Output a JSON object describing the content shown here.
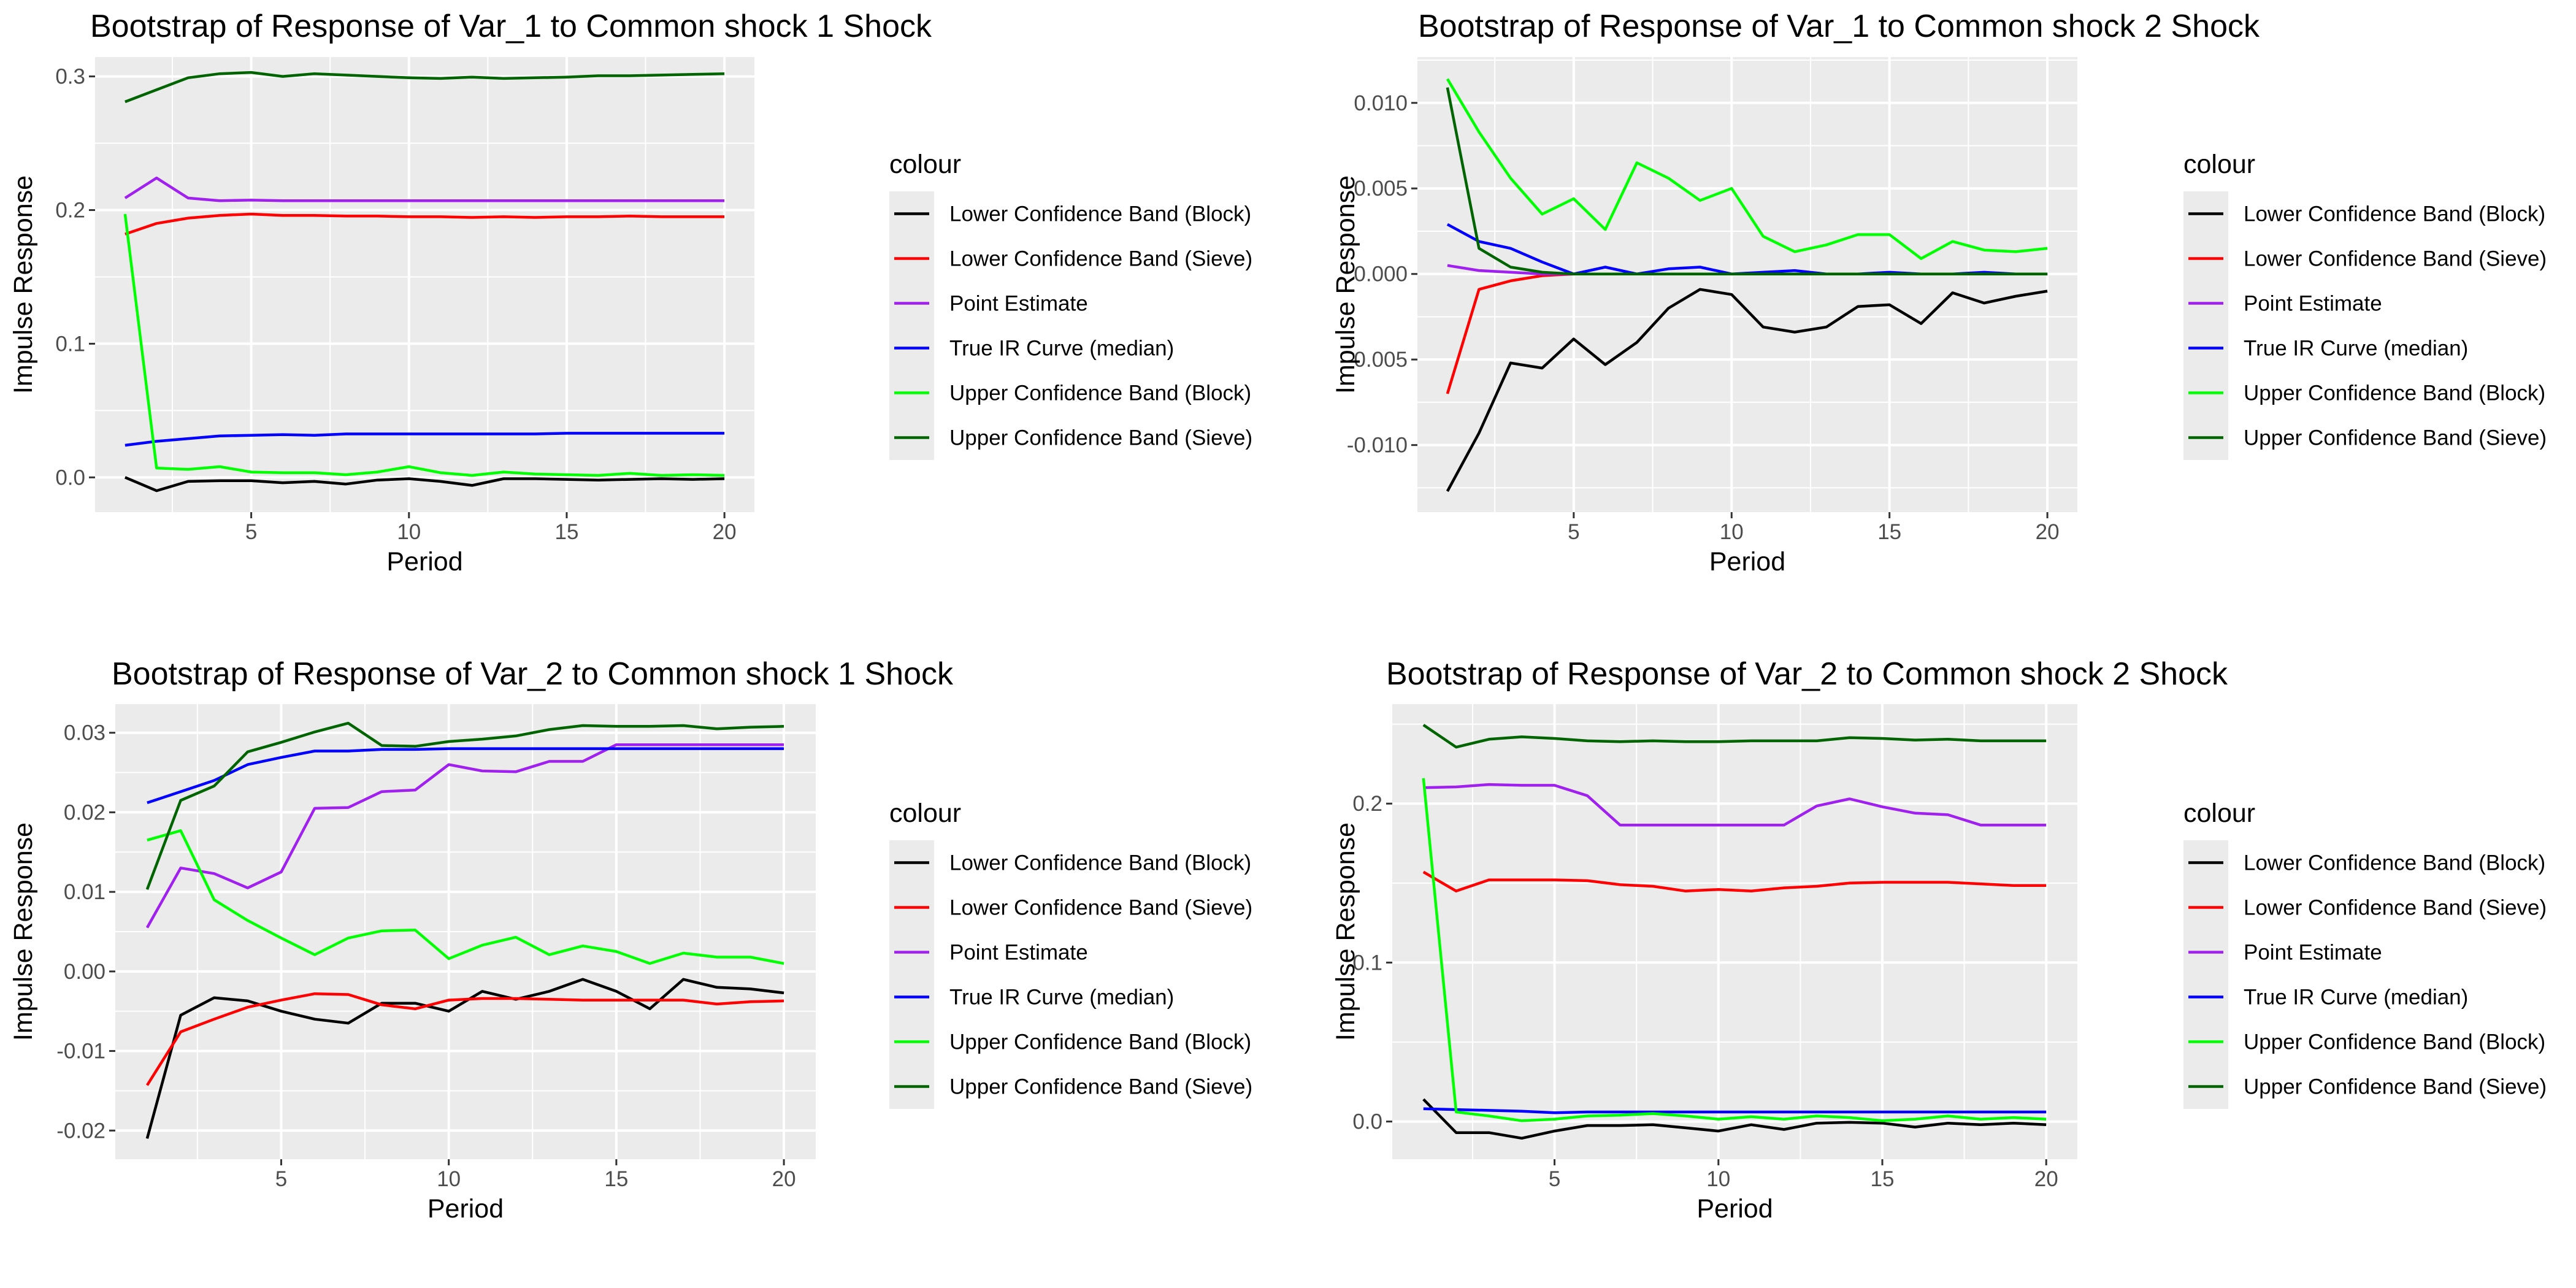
{
  "figure": {
    "colors": {
      "Lower Confidence Band (Block)": "#000000",
      "Lower Confidence Band (Sieve)": "#ff0000",
      "Point Estimate": "#a020f0",
      "True IR Curve (median)": "#0000ff",
      "Upper Confidence Band (Block)": "#00ff00",
      "Upper Confidence Band (Sieve)": "#006400"
    }
  },
  "chart_data": [
    {
      "type": "line",
      "title": "Bootstrap of Response of Var_1 to Common shock 1 Shock",
      "xlabel": "Period",
      "ylabel": "Impulse Response",
      "xlim": [
        0.05,
        20.95
      ],
      "ylim": [
        -0.026,
        0.3145
      ],
      "xticks": [
        5,
        10,
        15,
        20
      ],
      "xtick_labels": [
        "5",
        "10",
        "15",
        "20"
      ],
      "yticks": [
        0.0,
        0.1,
        0.2,
        0.3
      ],
      "ytick_labels": [
        "0.0",
        "0.1",
        "0.2",
        "0.3"
      ],
      "grid": true,
      "legend": {
        "title": "colour",
        "position": "right"
      },
      "x": [
        1,
        2,
        3,
        4,
        5,
        6,
        7,
        8,
        9,
        10,
        11,
        12,
        13,
        14,
        15,
        16,
        17,
        18,
        19,
        20
      ],
      "series": [
        {
          "name": "Lower Confidence Band (Block)",
          "values": [
            0.0,
            -0.01,
            -0.003,
            -0.0025,
            -0.0025,
            -0.004,
            -0.003,
            -0.005,
            -0.002,
            -0.001,
            -0.003,
            -0.006,
            -0.001,
            -0.001,
            -0.0015,
            -0.002,
            -0.0015,
            -0.001,
            -0.0015,
            -0.001
          ]
        },
        {
          "name": "Lower Confidence Band (Sieve)",
          "values": [
            0.182,
            0.19,
            0.194,
            0.196,
            0.197,
            0.196,
            0.196,
            0.1955,
            0.1955,
            0.195,
            0.195,
            0.1945,
            0.195,
            0.1945,
            0.195,
            0.195,
            0.1955,
            0.195,
            0.195,
            0.195
          ]
        },
        {
          "name": "Point Estimate",
          "values": [
            0.209,
            0.224,
            0.209,
            0.207,
            0.2075,
            0.207,
            0.207,
            0.207,
            0.207,
            0.207,
            0.207,
            0.207,
            0.207,
            0.207,
            0.207,
            0.207,
            0.207,
            0.207,
            0.207,
            0.207
          ]
        },
        {
          "name": "True IR Curve (median)",
          "values": [
            0.024,
            0.027,
            0.029,
            0.031,
            0.0315,
            0.032,
            0.0315,
            0.0325,
            0.0325,
            0.0325,
            0.0325,
            0.0325,
            0.0325,
            0.0325,
            0.033,
            0.033,
            0.033,
            0.033,
            0.033,
            0.033
          ]
        },
        {
          "name": "Upper Confidence Band (Block)",
          "values": [
            0.197,
            0.007,
            0.006,
            0.008,
            0.004,
            0.0035,
            0.0035,
            0.002,
            0.004,
            0.008,
            0.0035,
            0.0015,
            0.004,
            0.0025,
            0.002,
            0.0015,
            0.003,
            0.0015,
            0.002,
            0.0015
          ]
        },
        {
          "name": "Upper Confidence Band (Sieve)",
          "values": [
            0.281,
            0.29,
            0.299,
            0.302,
            0.303,
            0.3,
            0.302,
            0.301,
            0.3,
            0.299,
            0.2985,
            0.2995,
            0.2985,
            0.299,
            0.2995,
            0.3005,
            0.3005,
            0.301,
            0.3015,
            0.302
          ]
        }
      ]
    },
    {
      "type": "line",
      "title": "Bootstrap of Response of Var_1 to Common shock 2 Shock",
      "xlabel": "Period",
      "ylabel": "Impulse Response",
      "xlim": [
        0.05,
        20.95
      ],
      "ylim": [
        -0.01392,
        0.01268
      ],
      "xticks": [
        5,
        10,
        15,
        20
      ],
      "xtick_labels": [
        "5",
        "10",
        "15",
        "20"
      ],
      "yticks": [
        -0.01,
        -0.005,
        0.0,
        0.005,
        0.01
      ],
      "ytick_labels": [
        "-0.010",
        "-0.005",
        "0.000",
        "0.005",
        "0.010"
      ],
      "grid": true,
      "legend": {
        "title": "colour",
        "position": "right"
      },
      "x": [
        1,
        2,
        3,
        4,
        5,
        6,
        7,
        8,
        9,
        10,
        11,
        12,
        13,
        14,
        15,
        16,
        17,
        18,
        19,
        20
      ],
      "series": [
        {
          "name": "Lower Confidence Band (Block)",
          "values": [
            -0.0127,
            -0.0093,
            -0.0052,
            -0.0055,
            -0.0038,
            -0.0053,
            -0.004,
            -0.002,
            -0.0009,
            -0.0012,
            -0.0031,
            -0.0034,
            -0.0031,
            -0.0019,
            -0.0018,
            -0.0029,
            -0.0011,
            -0.0017,
            -0.0013,
            -0.001
          ]
        },
        {
          "name": "Lower Confidence Band (Sieve)",
          "values": [
            -0.007,
            -0.0009,
            -0.0004,
            -0.0001,
            0.0,
            0.0,
            0.0,
            0.0,
            0.0,
            0.0,
            0.0,
            0.0,
            0.0,
            0.0,
            0.0,
            0.0,
            0.0,
            0.0,
            0.0,
            0.0
          ]
        },
        {
          "name": "Point Estimate",
          "values": [
            0.0005,
            0.0002,
            0.0001,
            0.0,
            0.0,
            0.0,
            0.0,
            0.0,
            0.0,
            0.0,
            0.0,
            0.0,
            0.0,
            0.0,
            0.0,
            0.0,
            0.0,
            0.0,
            0.0,
            0.0
          ]
        },
        {
          "name": "True IR Curve (median)",
          "values": [
            0.0029,
            0.0019,
            0.0015,
            0.0007,
            0.0,
            0.0004,
            0.0,
            0.0003,
            0.0004,
            0.0,
            0.0001,
            0.0002,
            0.0,
            0.0,
            0.0001,
            0.0,
            0.0,
            0.0001,
            0.0,
            0.0
          ]
        },
        {
          "name": "Upper Confidence Band (Block)",
          "values": [
            0.0114,
            0.0083,
            0.0056,
            0.0035,
            0.0044,
            0.0026,
            0.0065,
            0.0056,
            0.0043,
            0.005,
            0.0022,
            0.0013,
            0.0017,
            0.0023,
            0.0023,
            0.0009,
            0.0019,
            0.0014,
            0.0013,
            0.0015
          ]
        },
        {
          "name": "Upper Confidence Band (Sieve)",
          "values": [
            0.0109,
            0.0015,
            0.0004,
            0.0001,
            0.0,
            0.0,
            0.0,
            0.0,
            0.0,
            0.0,
            0.0,
            0.0,
            0.0,
            0.0,
            0.0,
            0.0,
            0.0,
            0.0,
            0.0,
            0.0
          ]
        }
      ]
    },
    {
      "type": "line",
      "title": "Bootstrap of Response of Var_2 to Common shock 1 Shock",
      "xlabel": "Period",
      "ylabel": "Impulse Response",
      "xlim": [
        0.05,
        20.95
      ],
      "ylim": [
        -0.0236,
        0.0336
      ],
      "xticks": [
        5,
        10,
        15,
        20
      ],
      "xtick_labels": [
        "5",
        "10",
        "15",
        "20"
      ],
      "yticks": [
        -0.02,
        -0.01,
        0.0,
        0.01,
        0.02,
        0.03
      ],
      "ytick_labels": [
        "-0.02",
        "-0.01",
        "0.00",
        "0.01",
        "0.02",
        "0.03"
      ],
      "grid": true,
      "legend": {
        "title": "colour",
        "position": "right"
      },
      "x": [
        1,
        2,
        3,
        4,
        5,
        6,
        7,
        8,
        9,
        10,
        11,
        12,
        13,
        14,
        15,
        16,
        17,
        18,
        19,
        20
      ],
      "series": [
        {
          "name": "Lower Confidence Band (Block)",
          "values": [
            -0.021,
            -0.0055,
            -0.0033,
            -0.0037,
            -0.005,
            -0.006,
            -0.0065,
            -0.004,
            -0.004,
            -0.005,
            -0.0025,
            -0.0035,
            -0.0025,
            -0.001,
            -0.0025,
            -0.0047,
            -0.001,
            -0.002,
            -0.0022,
            -0.0027
          ]
        },
        {
          "name": "Lower Confidence Band (Sieve)",
          "values": [
            -0.0143,
            -0.0076,
            -0.006,
            -0.0045,
            -0.0036,
            -0.0028,
            -0.0029,
            -0.0042,
            -0.0047,
            -0.0036,
            -0.0034,
            -0.0034,
            -0.0035,
            -0.0036,
            -0.0036,
            -0.0036,
            -0.0036,
            -0.0041,
            -0.0038,
            -0.0037
          ]
        },
        {
          "name": "Point Estimate",
          "values": [
            0.0055,
            0.013,
            0.0123,
            0.0105,
            0.0125,
            0.0205,
            0.0206,
            0.0226,
            0.0228,
            0.026,
            0.0252,
            0.0251,
            0.0264,
            0.0264,
            0.0285,
            0.0285,
            0.0285,
            0.0285,
            0.0285,
            0.0285
          ]
        },
        {
          "name": "True IR Curve (median)",
          "values": [
            0.0212,
            0.0226,
            0.024,
            0.026,
            0.0269,
            0.0277,
            0.0277,
            0.0279,
            0.0279,
            0.028,
            0.028,
            0.028,
            0.028,
            0.028,
            0.028,
            0.028,
            0.028,
            0.028,
            0.028,
            0.028
          ]
        },
        {
          "name": "Upper Confidence Band (Block)",
          "values": [
            0.0165,
            0.0177,
            0.009,
            0.0064,
            0.0042,
            0.0021,
            0.0042,
            0.0051,
            0.0052,
            0.0016,
            0.0033,
            0.0043,
            0.0021,
            0.0032,
            0.0025,
            0.001,
            0.0023,
            0.0018,
            0.0018,
            0.001
          ]
        },
        {
          "name": "Upper Confidence Band (Sieve)",
          "values": [
            0.0103,
            0.0215,
            0.0233,
            0.0276,
            0.0288,
            0.0301,
            0.0312,
            0.0284,
            0.0283,
            0.0289,
            0.0292,
            0.0296,
            0.0304,
            0.0309,
            0.0308,
            0.0308,
            0.0309,
            0.0305,
            0.0307,
            0.0308
          ]
        }
      ]
    },
    {
      "type": "line",
      "title": "Bootstrap of Response of Var_2 to Common shock 2 Shock",
      "xlabel": "Period",
      "ylabel": "Impulse Response",
      "xlim": [
        0.05,
        20.95
      ],
      "ylim": [
        -0.0237,
        0.2626
      ],
      "xticks": [
        5,
        10,
        15,
        20
      ],
      "xtick_labels": [
        "5",
        "10",
        "15",
        "20"
      ],
      "yticks": [
        0.0,
        0.1,
        0.2
      ],
      "ytick_labels": [
        "0.0",
        "0.1",
        "0.2"
      ],
      "grid": true,
      "legend": {
        "title": "colour",
        "position": "right"
      },
      "x": [
        1,
        2,
        3,
        4,
        5,
        6,
        7,
        8,
        9,
        10,
        11,
        12,
        13,
        14,
        15,
        16,
        17,
        18,
        19,
        20
      ],
      "series": [
        {
          "name": "Lower Confidence Band (Block)",
          "values": [
            0.014,
            -0.007,
            -0.007,
            -0.0105,
            -0.006,
            -0.0025,
            -0.0025,
            -0.002,
            -0.004,
            -0.006,
            -0.002,
            -0.005,
            -0.001,
            -0.0005,
            -0.001,
            -0.0035,
            -0.001,
            -0.002,
            -0.001,
            -0.002
          ]
        },
        {
          "name": "Lower Confidence Band (Sieve)",
          "values": [
            0.157,
            0.145,
            0.152,
            0.152,
            0.152,
            0.1515,
            0.149,
            0.148,
            0.145,
            0.146,
            0.145,
            0.147,
            0.148,
            0.15,
            0.1505,
            0.1505,
            0.1505,
            0.1495,
            0.1485,
            0.1485
          ]
        },
        {
          "name": "Point Estimate",
          "values": [
            0.21,
            0.2105,
            0.212,
            0.2115,
            0.2115,
            0.205,
            0.1865,
            0.1865,
            0.1865,
            0.1865,
            0.1865,
            0.1865,
            0.1985,
            0.203,
            0.198,
            0.194,
            0.193,
            0.1865,
            0.1865,
            0.1865
          ]
        },
        {
          "name": "True IR Curve (median)",
          "values": [
            0.008,
            0.0075,
            0.007,
            0.0065,
            0.0055,
            0.006,
            0.006,
            0.006,
            0.006,
            0.006,
            0.006,
            0.006,
            0.006,
            0.006,
            0.006,
            0.006,
            0.006,
            0.006,
            0.006,
            0.006
          ]
        },
        {
          "name": "Upper Confidence Band (Block)",
          "values": [
            0.216,
            0.006,
            0.0035,
            0.0005,
            0.0015,
            0.0035,
            0.004,
            0.005,
            0.0035,
            0.0015,
            0.003,
            0.0015,
            0.0035,
            0.0025,
            0.0005,
            0.0015,
            0.0035,
            0.0015,
            0.0025,
            0.0015
          ]
        },
        {
          "name": "Upper Confidence Band (Sieve)",
          "values": [
            0.2495,
            0.2355,
            0.2405,
            0.242,
            0.241,
            0.2395,
            0.239,
            0.2395,
            0.239,
            0.239,
            0.2395,
            0.2395,
            0.2395,
            0.2415,
            0.241,
            0.24,
            0.2405,
            0.2395,
            0.2395,
            0.2395
          ]
        }
      ]
    }
  ]
}
